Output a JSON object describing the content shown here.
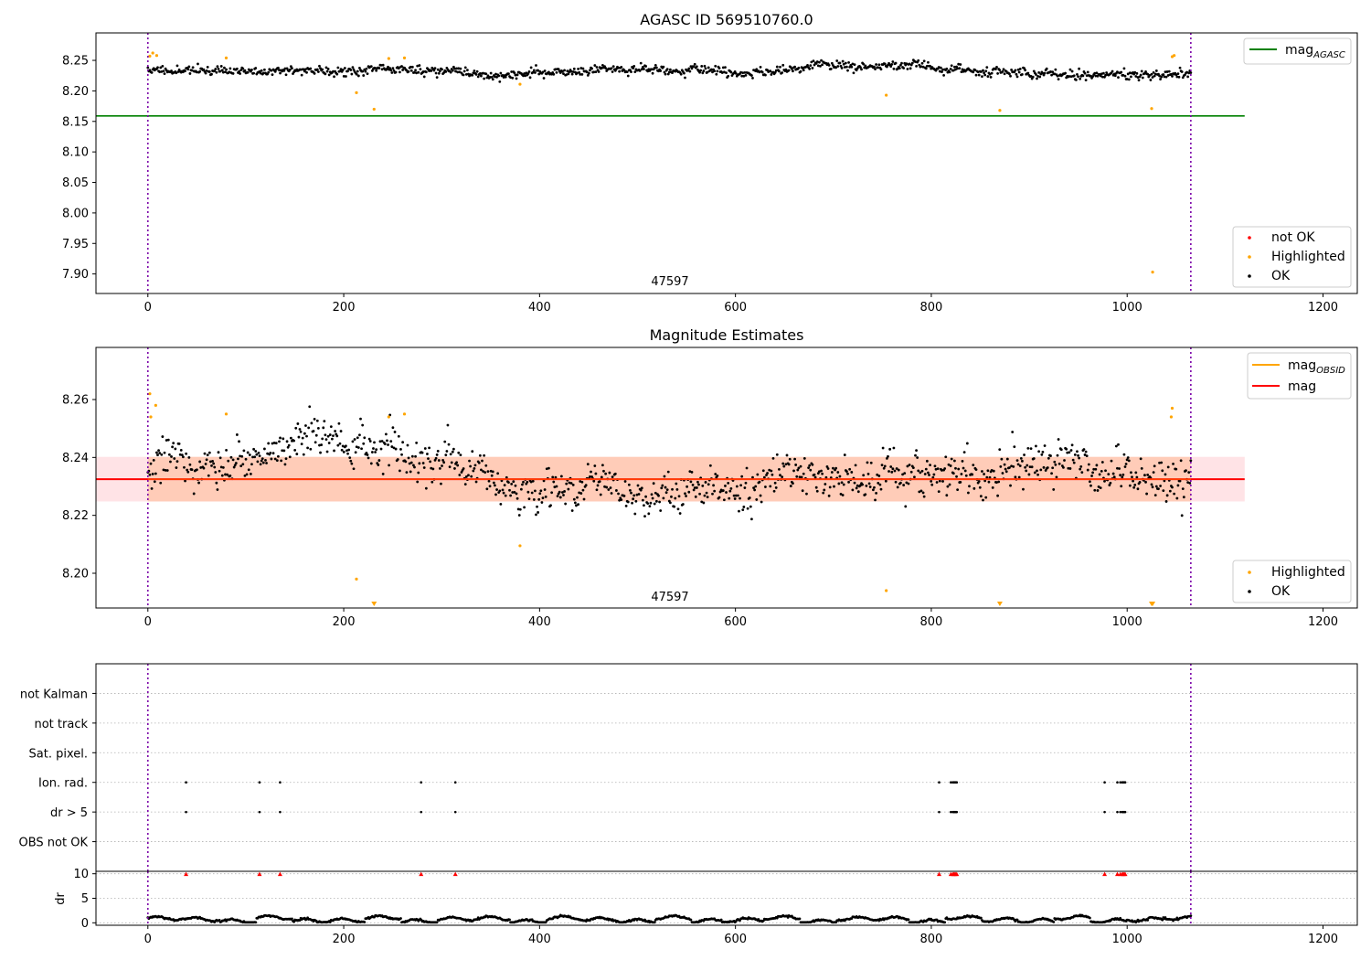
{
  "chart_data": [
    {
      "type": "scatter",
      "panel": "agasc",
      "title": "AGASC ID 569510760.0",
      "xlim": [
        -53,
        1235
      ],
      "ylim": [
        7.868,
        8.295
      ],
      "x_ticks": [
        0,
        200,
        400,
        600,
        800,
        1000,
        1200
      ],
      "y_ticks": [
        7.9,
        7.95,
        8.0,
        8.05,
        8.1,
        8.15,
        8.2,
        8.25
      ],
      "y_tick_labels": [
        "7.90",
        "7.95",
        "8.00",
        "8.05",
        "8.10",
        "8.15",
        "8.20",
        "8.25"
      ],
      "vlines": [
        0,
        1065
      ],
      "annotation": {
        "text": "47597",
        "x": 532,
        "y": 7.883
      },
      "mag_agasc": 8.159,
      "mag_agasc_xrange": [
        -53,
        1120
      ],
      "ok_series": {
        "name": "OK",
        "color": "#000000",
        "count": 1065,
        "x_range": [
          0,
          1065
        ],
        "mean": 8.232,
        "spread": 0.008
      },
      "highlighted": {
        "name": "Highlighted",
        "color": "#ffa500",
        "x": [
          2,
          5,
          9,
          80,
          213,
          231,
          246,
          262,
          380,
          754,
          870,
          1025,
          1026,
          1046,
          1048
        ],
        "y": [
          8.257,
          8.262,
          8.258,
          8.254,
          8.197,
          8.17,
          8.253,
          8.254,
          8.211,
          8.193,
          8.168,
          8.171,
          7.903,
          8.256,
          8.258
        ]
      },
      "legend_series": [
        {
          "label": "not OK",
          "color": "#ff0000"
        },
        {
          "label": "Highlighted",
          "color": "#ffa500"
        },
        {
          "label": "OK",
          "color": "#000000"
        }
      ],
      "legend_lines": [
        {
          "label": "mag",
          "subscript": "AGASC",
          "color": "#008000"
        }
      ],
      "legend_placement": {
        "lines": "top-right",
        "series": "lower-right"
      }
    },
    {
      "type": "scatter",
      "panel": "estimates",
      "title": "Magnitude Estimates",
      "xlim": [
        -53,
        1235
      ],
      "ylim": [
        8.188,
        8.278
      ],
      "x_ticks": [
        0,
        200,
        400,
        600,
        800,
        1000,
        1200
      ],
      "y_ticks": [
        8.2,
        8.22,
        8.24,
        8.26
      ],
      "y_tick_labels": [
        "8.20",
        "8.22",
        "8.24",
        "8.26"
      ],
      "vlines": [
        0,
        1065
      ],
      "annotation": {
        "text": "47597",
        "x": 532,
        "y": 8.1905
      },
      "mag": 8.2325,
      "mag_band": [
        8.2248,
        8.2402
      ],
      "mag_xrange": [
        -53,
        1120
      ],
      "ok_series": {
        "name": "OK",
        "color": "#000000",
        "count": 1065,
        "x_range": [
          0,
          1065
        ],
        "mean": 8.2325,
        "spread": 0.0075
      },
      "highlighted": {
        "name": "Highlighted",
        "color": "#ffa500",
        "x": [
          2,
          3,
          8,
          80,
          213,
          246,
          262,
          380,
          754,
          1045,
          1046
        ],
        "y": [
          8.262,
          8.254,
          8.258,
          8.255,
          8.198,
          8.254,
          8.255,
          8.2095,
          8.194,
          8.254,
          8.257
        ]
      },
      "below_range_markers": {
        "x": [
          231,
          870,
          1025,
          1026
        ],
        "color": "#ffa500"
      },
      "legend_series": [
        {
          "label": "Highlighted",
          "color": "#ffa500"
        },
        {
          "label": "OK",
          "color": "#000000"
        }
      ],
      "legend_lines": [
        {
          "label": "mag",
          "subscript": "OBSID",
          "color": "#ffa500"
        },
        {
          "label": "mag",
          "subscript": "",
          "color": "#ff0000"
        }
      ],
      "legend_placement": {
        "lines": "top-right",
        "series": "lower-right"
      }
    },
    {
      "type": "scatter",
      "panel": "flags",
      "xlim": [
        -53,
        1235
      ],
      "categories": [
        "not Kalman",
        "not track",
        "Sat. pixel.",
        "Ion. rad.",
        "dr > 5",
        "OBS not OK"
      ],
      "vlines": [
        0,
        1065
      ],
      "flag_points": {
        "Ion. rad.": [
          39,
          114,
          135,
          279,
          314,
          808,
          820,
          822,
          823,
          824,
          825,
          826,
          977,
          990,
          993,
          995,
          996,
          997,
          998
        ],
        "dr > 5": [
          39,
          114,
          135,
          279,
          314,
          808,
          820,
          822,
          823,
          824,
          825,
          826,
          977,
          990,
          993,
          995,
          996,
          997,
          998
        ]
      },
      "grid": true
    },
    {
      "type": "scatter",
      "panel": "dr",
      "ylabel": "dr",
      "xlim": [
        -53,
        1235
      ],
      "ylim": [
        -0.5,
        10.5
      ],
      "x_ticks": [
        0,
        200,
        400,
        600,
        800,
        1000,
        1200
      ],
      "y_ticks": [
        0,
        5,
        10
      ],
      "y_tick_labels": [
        "0",
        "5",
        "10"
      ],
      "vlines": [
        0,
        1065
      ],
      "dr_series": {
        "color": "#000000",
        "count": 1065,
        "x_range": [
          0,
          1065
        ],
        "typical": 0.6,
        "max": 1.9
      },
      "clipped_markers": {
        "color": "#ff0000",
        "x": [
          39,
          114,
          135,
          279,
          314,
          808,
          820,
          822,
          823,
          824,
          825,
          826,
          977,
          990,
          993,
          995,
          996,
          997,
          998
        ],
        "y": 10
      },
      "grid": true
    }
  ]
}
